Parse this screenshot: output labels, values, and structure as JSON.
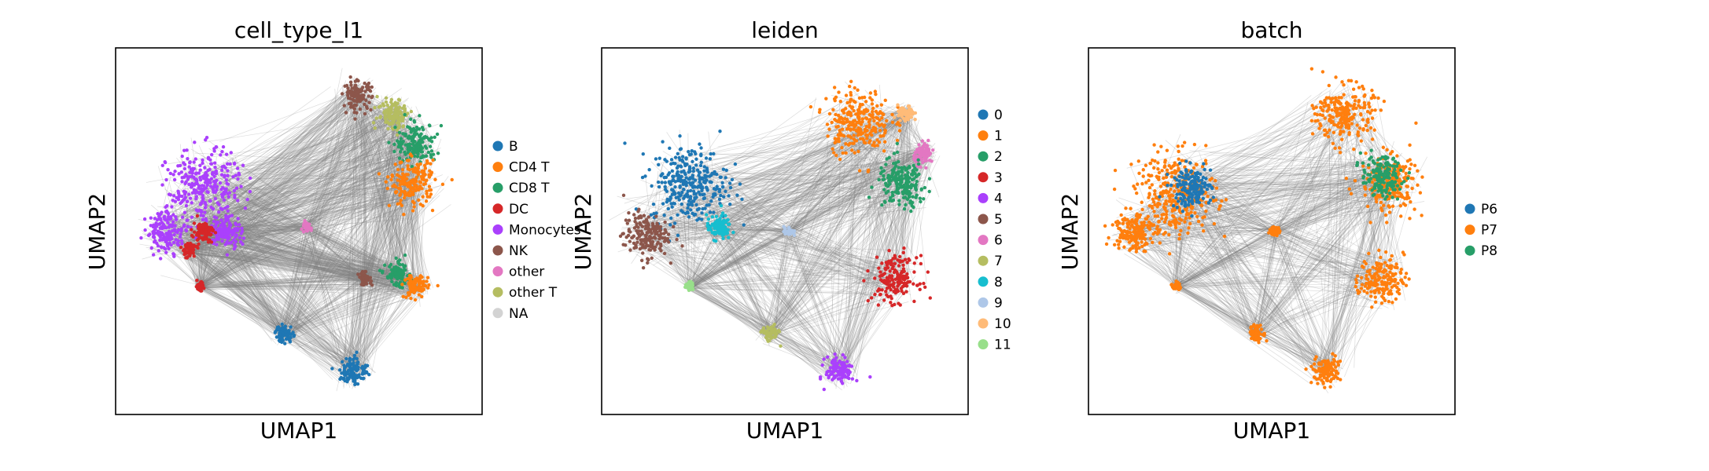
{
  "chart_data": [
    {
      "type": "scatter",
      "title": "cell_type_l1",
      "xlabel": "UMAP1",
      "ylabel": "UMAP2",
      "ticks": "none",
      "grid": false,
      "legend_placement": "right",
      "edge_color": "#808080",
      "legend": [
        {
          "label": "B",
          "color": "#1f77b4"
        },
        {
          "label": "CD4 T",
          "color": "#ff7f0e"
        },
        {
          "label": "CD8 T",
          "color": "#279e68"
        },
        {
          "label": "DC",
          "color": "#d62728"
        },
        {
          "label": "Monocytes",
          "color": "#aa40fc"
        },
        {
          "label": "NK",
          "color": "#8c564b"
        },
        {
          "label": "other",
          "color": "#e377c2"
        },
        {
          "label": "other T",
          "color": "#b5bd61"
        },
        {
          "label": "NA",
          "color": "#d3d3d3"
        }
      ],
      "clusters": [
        {
          "label": "Monocytes",
          "x": 0.24,
          "y": 0.62,
          "spread": 0.09
        },
        {
          "label": "Monocytes",
          "x": 0.14,
          "y": 0.5,
          "spread": 0.05
        },
        {
          "label": "Monocytes",
          "x": 0.3,
          "y": 0.5,
          "spread": 0.04
        },
        {
          "label": "DC",
          "x": 0.24,
          "y": 0.5,
          "spread": 0.025
        },
        {
          "label": "DC",
          "x": 0.2,
          "y": 0.45,
          "spread": 0.02
        },
        {
          "label": "DC",
          "x": 0.23,
          "y": 0.35,
          "spread": 0.01
        },
        {
          "label": "other",
          "x": 0.52,
          "y": 0.51,
          "spread": 0.012
        },
        {
          "label": "NK",
          "x": 0.66,
          "y": 0.87,
          "spread": 0.035
        },
        {
          "label": "other T",
          "x": 0.76,
          "y": 0.82,
          "spread": 0.04
        },
        {
          "label": "CD8 T",
          "x": 0.82,
          "y": 0.74,
          "spread": 0.05
        },
        {
          "label": "CD4 T",
          "x": 0.81,
          "y": 0.63,
          "spread": 0.055
        },
        {
          "label": "CD8 T",
          "x": 0.77,
          "y": 0.38,
          "spread": 0.03
        },
        {
          "label": "CD4 T",
          "x": 0.82,
          "y": 0.35,
          "spread": 0.03
        },
        {
          "label": "NK",
          "x": 0.68,
          "y": 0.37,
          "spread": 0.015
        },
        {
          "label": "B",
          "x": 0.46,
          "y": 0.22,
          "spread": 0.022
        },
        {
          "label": "B",
          "x": 0.65,
          "y": 0.12,
          "spread": 0.035
        }
      ]
    },
    {
      "type": "scatter",
      "title": "leiden",
      "xlabel": "UMAP1",
      "ylabel": "UMAP2",
      "ticks": "none",
      "grid": false,
      "legend_placement": "right",
      "edge_color": "#808080",
      "legend": [
        {
          "label": "0",
          "color": "#1f77b4"
        },
        {
          "label": "1",
          "color": "#ff7f0e"
        },
        {
          "label": "2",
          "color": "#279e68"
        },
        {
          "label": "3",
          "color": "#d62728"
        },
        {
          "label": "4",
          "color": "#aa40fc"
        },
        {
          "label": "5",
          "color": "#8c564b"
        },
        {
          "label": "6",
          "color": "#e377c2"
        },
        {
          "label": "7",
          "color": "#b5bd61"
        },
        {
          "label": "8",
          "color": "#17becf"
        },
        {
          "label": "9",
          "color": "#aec7e8"
        },
        {
          "label": "10",
          "color": "#ffbb78"
        },
        {
          "label": "11",
          "color": "#98df8a"
        }
      ],
      "clusters": [
        {
          "label": "0",
          "x": 0.24,
          "y": 0.63,
          "spread": 0.095
        },
        {
          "label": "5",
          "x": 0.12,
          "y": 0.49,
          "spread": 0.055
        },
        {
          "label": "8",
          "x": 0.32,
          "y": 0.51,
          "spread": 0.03
        },
        {
          "label": "9",
          "x": 0.51,
          "y": 0.5,
          "spread": 0.012
        },
        {
          "label": "11",
          "x": 0.24,
          "y": 0.35,
          "spread": 0.01
        },
        {
          "label": "1",
          "x": 0.7,
          "y": 0.8,
          "spread": 0.08
        },
        {
          "label": "10",
          "x": 0.83,
          "y": 0.82,
          "spread": 0.02
        },
        {
          "label": "6",
          "x": 0.88,
          "y": 0.71,
          "spread": 0.025
        },
        {
          "label": "2",
          "x": 0.82,
          "y": 0.63,
          "spread": 0.06
        },
        {
          "label": "3",
          "x": 0.8,
          "y": 0.37,
          "spread": 0.055
        },
        {
          "label": "7",
          "x": 0.46,
          "y": 0.22,
          "spread": 0.02
        },
        {
          "label": "4",
          "x": 0.65,
          "y": 0.12,
          "spread": 0.035
        }
      ]
    },
    {
      "type": "scatter",
      "title": "batch",
      "xlabel": "UMAP1",
      "ylabel": "UMAP2",
      "ticks": "none",
      "grid": false,
      "legend_placement": "right",
      "edge_color": "#808080",
      "legend": [
        {
          "label": "P6",
          "color": "#1f77b4"
        },
        {
          "label": "P7",
          "color": "#ff7f0e"
        },
        {
          "label": "P8",
          "color": "#279e68"
        }
      ],
      "clusters": [
        {
          "label": "P7",
          "x": 0.24,
          "y": 0.6,
          "spread": 0.1
        },
        {
          "label": "P6",
          "x": 0.28,
          "y": 0.62,
          "spread": 0.05
        },
        {
          "label": "P7",
          "x": 0.12,
          "y": 0.5,
          "spread": 0.05
        },
        {
          "label": "P7",
          "x": 0.7,
          "y": 0.82,
          "spread": 0.07
        },
        {
          "label": "P7",
          "x": 0.82,
          "y": 0.63,
          "spread": 0.07
        },
        {
          "label": "P8",
          "x": 0.8,
          "y": 0.65,
          "spread": 0.05
        },
        {
          "label": "P7",
          "x": 0.8,
          "y": 0.37,
          "spread": 0.055
        },
        {
          "label": "P7",
          "x": 0.51,
          "y": 0.5,
          "spread": 0.012
        },
        {
          "label": "P7",
          "x": 0.24,
          "y": 0.35,
          "spread": 0.01
        },
        {
          "label": "P7",
          "x": 0.46,
          "y": 0.22,
          "spread": 0.02
        },
        {
          "label": "P7",
          "x": 0.65,
          "y": 0.12,
          "spread": 0.035
        }
      ]
    }
  ]
}
